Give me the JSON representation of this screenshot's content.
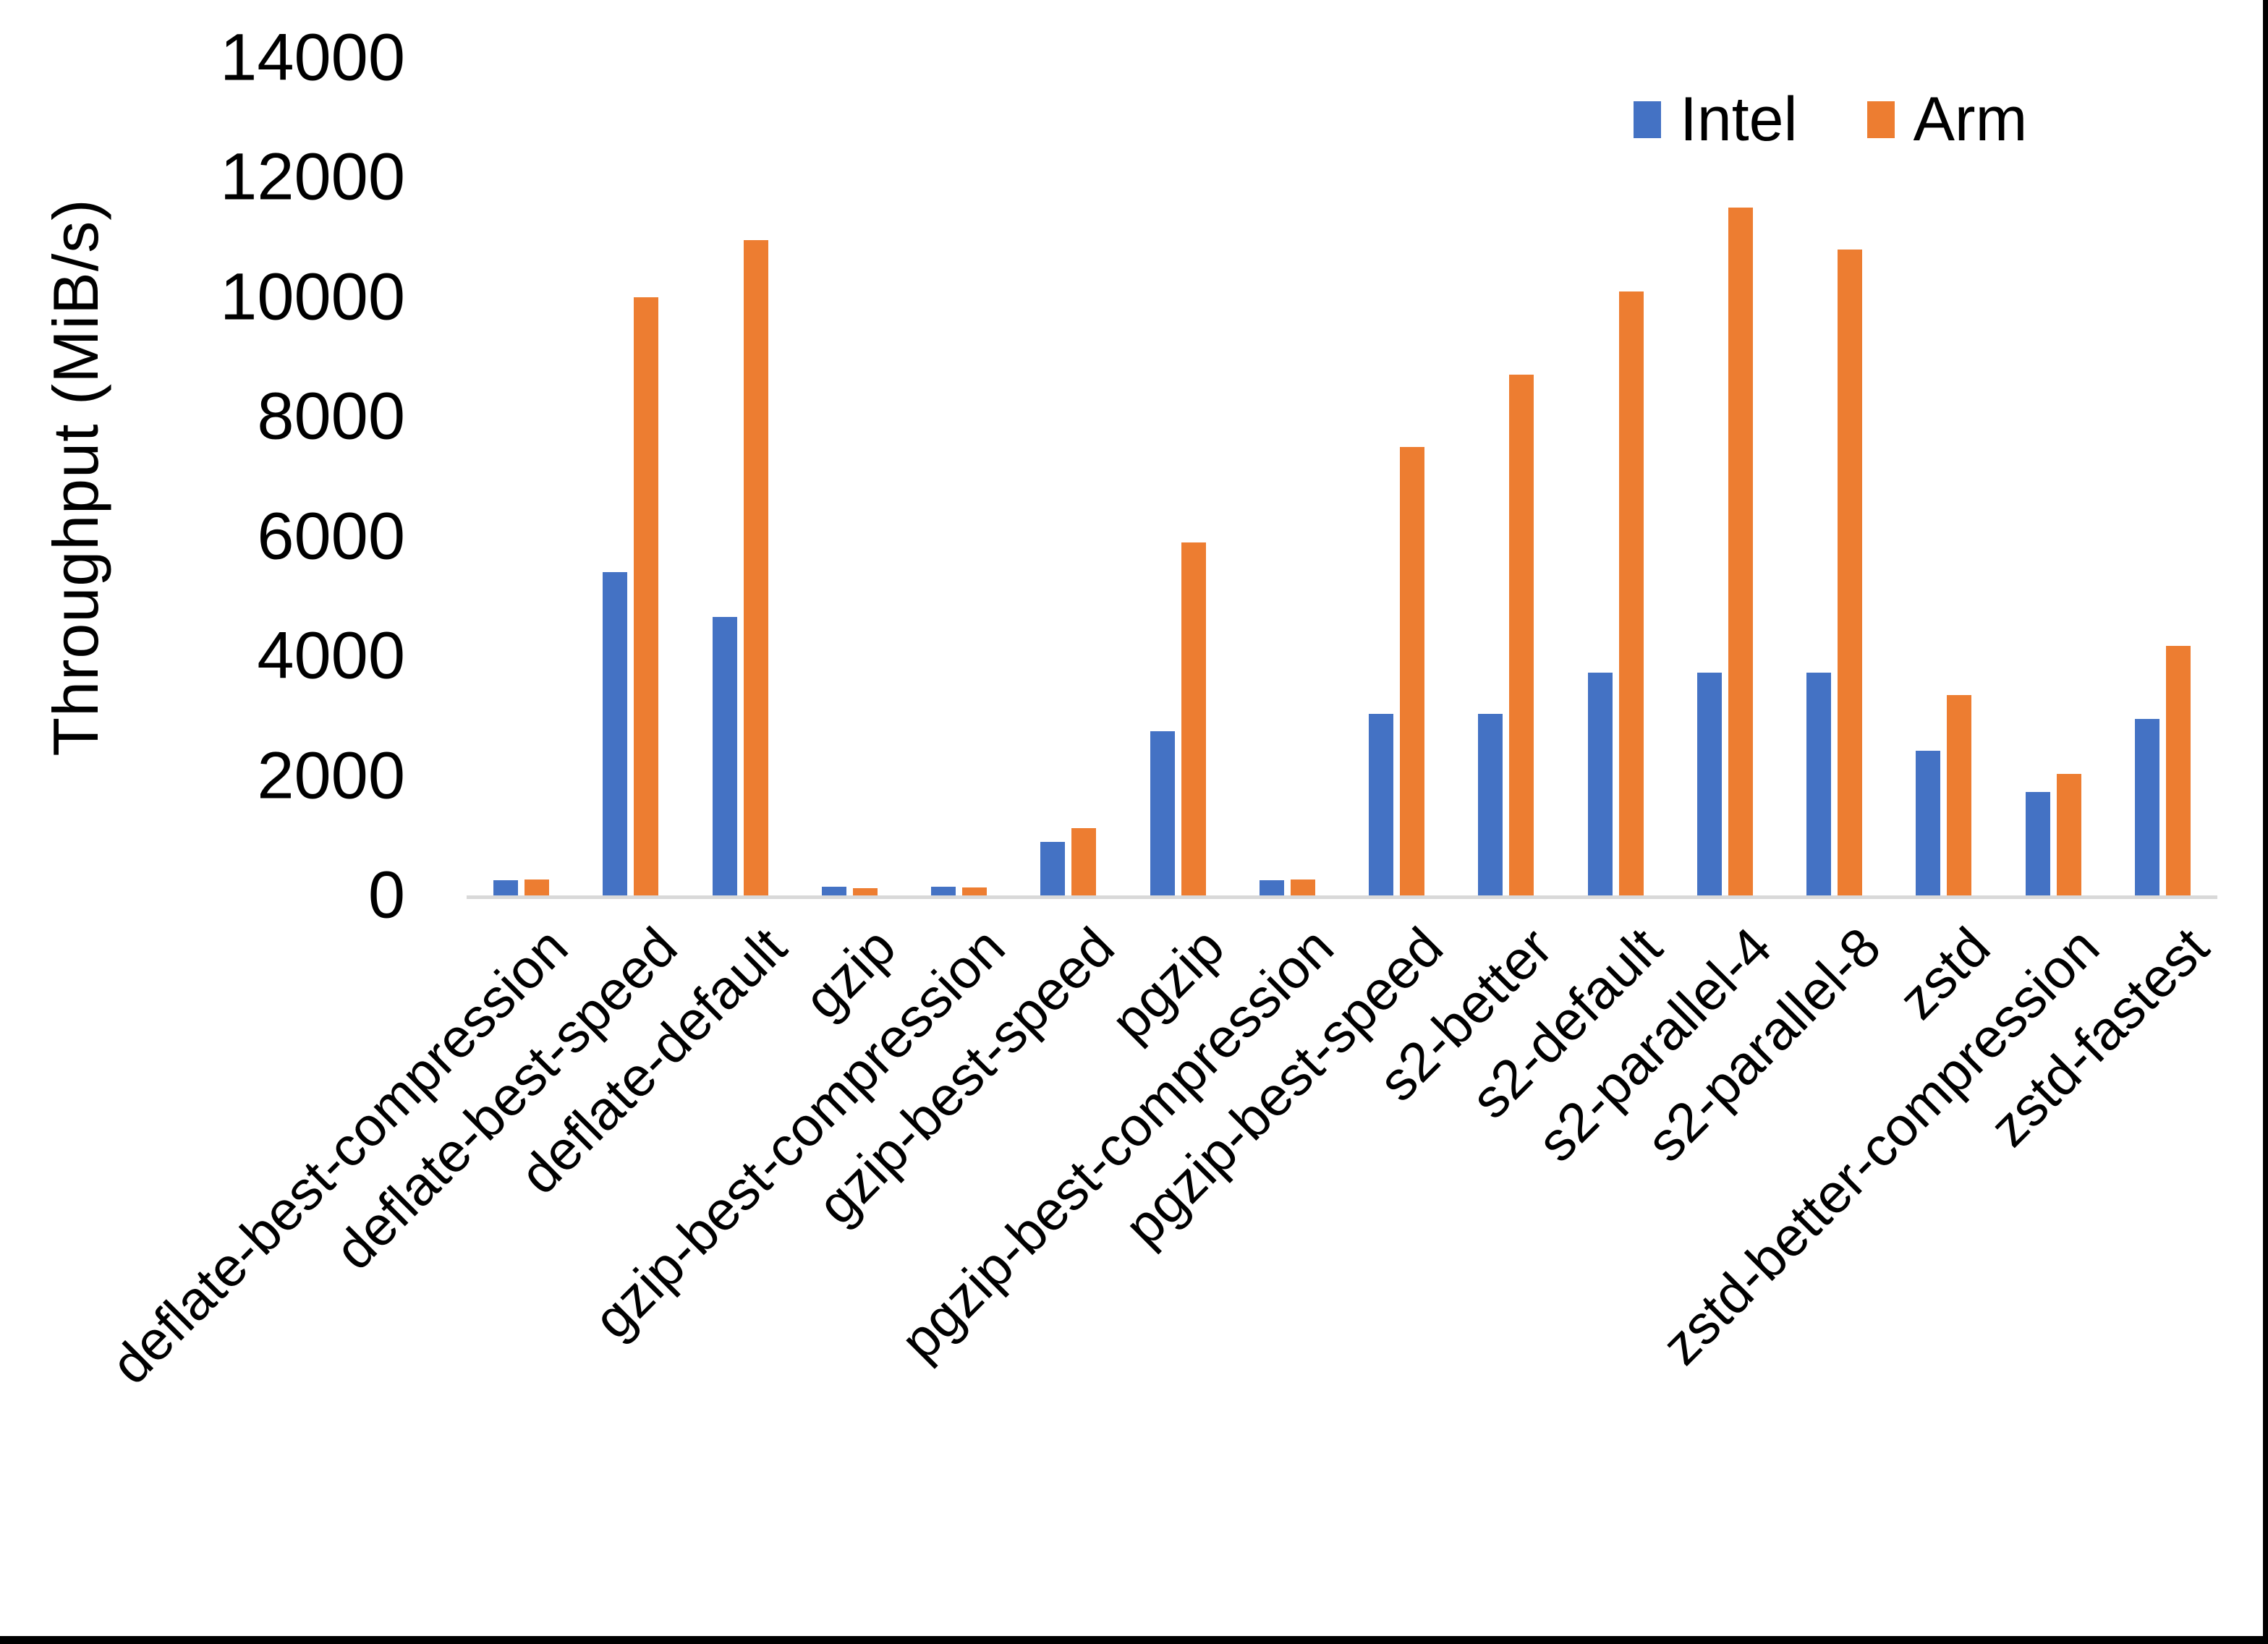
{
  "chart_data": {
    "type": "bar",
    "title": "",
    "xlabel": "",
    "ylabel": "Throughput (MiB/s)",
    "ylim": [
      0,
      14000
    ],
    "yticks": [
      0,
      2000,
      4000,
      6000,
      8000,
      10000,
      12000,
      14000
    ],
    "grid": false,
    "legend_position": "top-right",
    "categories": [
      "deflate-best-compression",
      "deflate-best-speed",
      "deflate-default",
      "gzip",
      "gzip-best-compression",
      "gzip-best-speed",
      "pgzip",
      "pgzip-best-compression",
      "pgzip-best-speed",
      "s2-better",
      "s2-default",
      "s2-parallel-4",
      "s2-parallel-8",
      "zstd",
      "zstd-better-compression",
      "zstd-fastest"
    ],
    "series": [
      {
        "name": "Intel",
        "color": "#4472C4",
        "values": [
          250,
          5400,
          4650,
          150,
          150,
          900,
          2750,
          250,
          3030,
          3030,
          3720,
          3720,
          3720,
          2420,
          1730,
          2950
        ]
      },
      {
        "name": "Arm",
        "color": "#ED7D31",
        "values": [
          260,
          10000,
          10950,
          120,
          130,
          1130,
          5900,
          260,
          7500,
          8700,
          10100,
          11500,
          10800,
          3350,
          2030,
          4170
        ]
      }
    ],
    "axis_line_color": "#D9D9D9"
  }
}
